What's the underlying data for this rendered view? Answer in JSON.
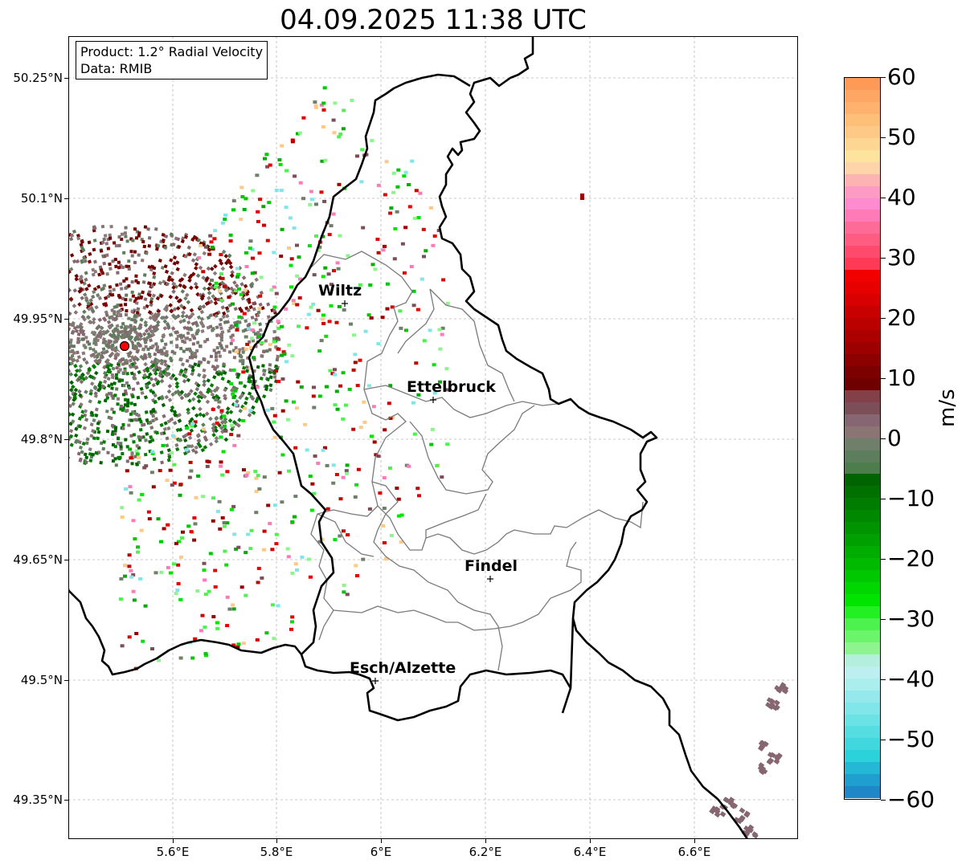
{
  "title": "04.09.2025 11:38 UTC",
  "info": {
    "product": "Product: 1.2° Radial Velocity",
    "data": "Data: RMIB"
  },
  "lat_labels": [
    "50.25°N",
    "50.1°N",
    "49.95°N",
    "49.8°N",
    "49.65°N",
    "49.5°N",
    "49.35°N"
  ],
  "lon_labels": [
    "5.6°E",
    "5.8°E",
    "6°E",
    "6.2°E",
    "6.4°E",
    "6.6°E"
  ],
  "cities": [
    {
      "name": "Wiltz"
    },
    {
      "name": "Ettelbruck"
    },
    {
      "name": "Findel"
    },
    {
      "name": "Esch/Alzette"
    }
  ],
  "colorbar": {
    "unit": "m/s",
    "min": -60,
    "max": 60,
    "tick_labels": [
      "60",
      "50",
      "40",
      "30",
      "20",
      "10",
      "0",
      "−10",
      "−20",
      "−30",
      "−40",
      "−50",
      "−60"
    ]
  },
  "colors": {
    "border": "#000000",
    "canton_lines": "#777777",
    "radar_site": "#ff0000",
    "grid": "#b0b0b0"
  }
}
